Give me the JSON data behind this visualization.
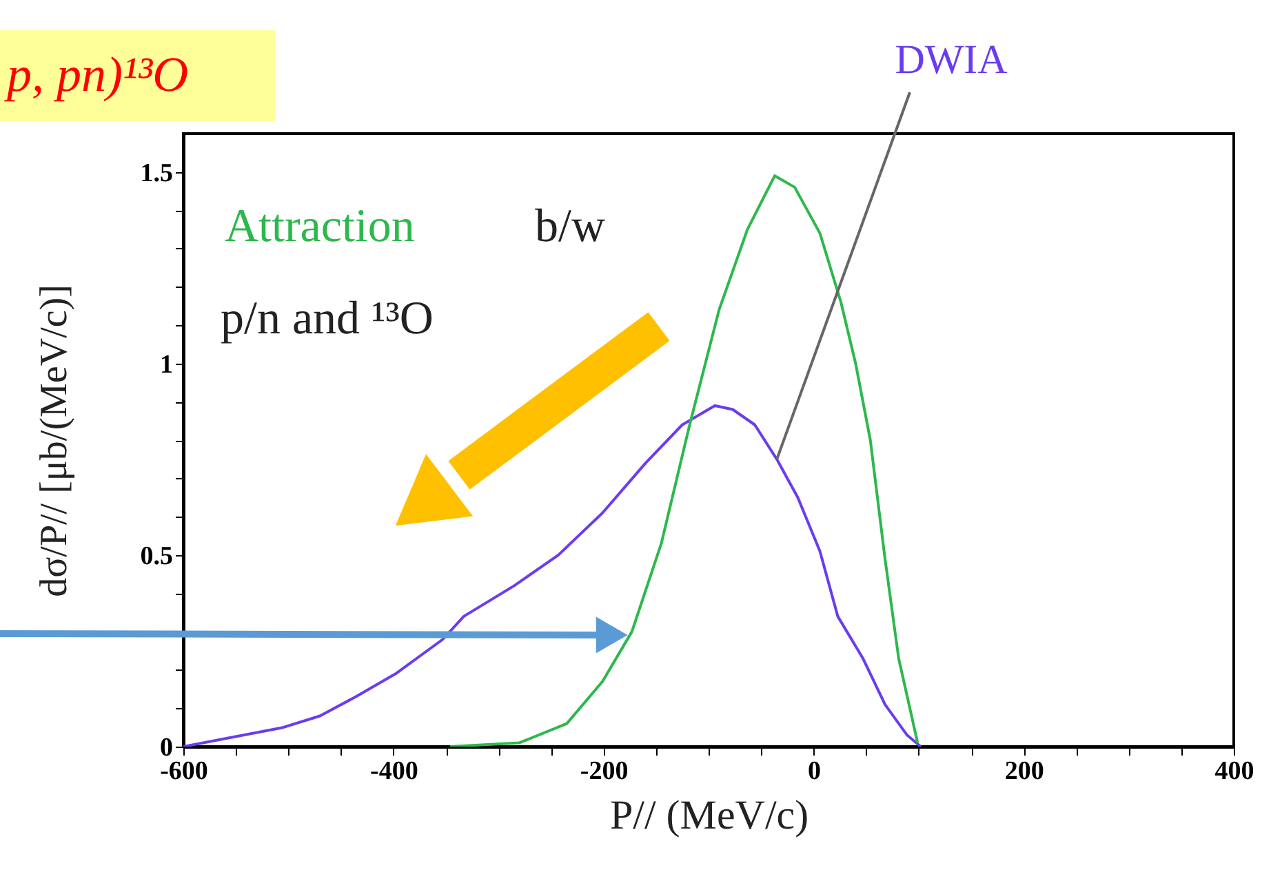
{
  "chart_data": {
    "type": "line",
    "title": "p, pn)¹³O",
    "xlabel": "P// (MeV/c)",
    "ylabel": "dσ/P// [μb/(MeV/c)]",
    "annotations": [
      {
        "text": "DWIA",
        "x": -35,
        "y": 0.75
      },
      "Attraction",
      "b/w",
      "p/n and ¹³O"
    ],
    "xlim": [
      -600,
      400
    ],
    "ylim": [
      0,
      1.6
    ],
    "xticks": [
      -600,
      {
        "value": -550,
        "label": null
      },
      {
        "value": -500,
        "label": null
      },
      {
        "value": -450,
        "label": null
      },
      -400,
      {
        "value": -350,
        "label": null
      },
      {
        "value": -300,
        "label": null
      },
      {
        "value": -250,
        "label": null
      },
      -200,
      {
        "value": -150,
        "label": null
      },
      {
        "value": -100,
        "label": null
      },
      {
        "value": -50,
        "label": null
      },
      0,
      {
        "value": 50,
        "label": null
      },
      {
        "value": 100,
        "label": null
      },
      {
        "value": 150,
        "label": null
      },
      200,
      {
        "value": 250,
        "label": null
      },
      {
        "value": 300,
        "label": null
      },
      {
        "value": 350,
        "label": null
      },
      400
    ],
    "yticks": [
      0,
      {
        "value": 0.1,
        "label": null
      },
      {
        "value": 0.2,
        "label": null
      },
      {
        "value": 0.3,
        "label": null
      },
      {
        "value": 0.4,
        "label": null
      },
      0.5,
      {
        "value": 0.6,
        "label": null
      },
      {
        "value": 0.7,
        "label": null
      },
      {
        "value": 0.8,
        "label": null
      },
      {
        "value": 0.9,
        "label": null
      },
      1,
      {
        "value": 1.1,
        "label": null
      },
      {
        "value": 1.2,
        "label": null
      },
      {
        "value": 1.3,
        "label": null
      },
      {
        "value": 1.4,
        "label": null
      },
      1.5
    ],
    "grid": false,
    "legend": false,
    "marker": "none",
    "line_style": "solid",
    "series": [
      {
        "color": "#6a3cf0",
        "x": [
          -600,
          -505,
          -470,
          -436,
          -398,
          -353,
          -333,
          -285,
          -243,
          -201,
          -160,
          -125,
          -94,
          -77,
          -56,
          -35,
          -15,
          6,
          23,
          47,
          68,
          89,
          102
        ],
        "values": [
          0,
          0.05,
          0.08,
          0.13,
          0.19,
          0.28,
          0.34,
          0.42,
          0.5,
          0.61,
          0.74,
          0.84,
          0.89,
          0.88,
          0.84,
          0.75,
          0.65,
          0.51,
          0.34,
          0.23,
          0.11,
          0.03,
          0
        ]
      },
      {
        "color": "#2db84d",
        "x": [
          -346,
          -280,
          -235,
          -201,
          -173,
          -145,
          -118,
          -90,
          -63,
          -37,
          -18,
          6,
          26,
          40,
          54,
          68,
          81,
          99
        ],
        "values": [
          0,
          0.01,
          0.06,
          0.17,
          0.3,
          0.53,
          0.84,
          1.14,
          1.35,
          1.49,
          1.46,
          1.34,
          1.16,
          1.0,
          0.8,
          0.49,
          0.23,
          0.01
        ]
      }
    ]
  }
}
